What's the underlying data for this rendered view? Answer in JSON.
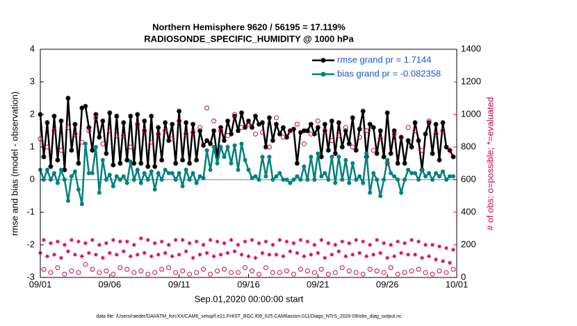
{
  "chart_data": {
    "type": "line",
    "title": "Northern Hemisphere 9620 / 56195 = 17.119%",
    "subtitle": "RADIOSONDE_SPECIFIC_HUMIDITY @ 1000 hPa",
    "xlabel": "Sep.01,2020 00:00:00 start",
    "ylabel": "rmse and bias (model - observation)",
    "y2label": "# of obs: o=possible; *=evaluated",
    "footnote": "data file: /Users/raeder/DAI/ATM_forcXX/CAM6_setup/f.e21.FHIST_BGC.f09_025.CAM6assim.011/Diags_NTrS_2020-09/obs_diag_output.nc",
    "xlim": [
      0,
      30
    ],
    "xticks": [
      {
        "value": 0,
        "label": "09/01"
      },
      {
        "value": 5,
        "label": "09/06"
      },
      {
        "value": 10,
        "label": "09/11"
      },
      {
        "value": 15,
        "label": "09/16"
      },
      {
        "value": 20,
        "label": "09/21"
      },
      {
        "value": 25,
        "label": "09/26"
      },
      {
        "value": 30,
        "label": "10/01"
      }
    ],
    "ylim": [
      -3,
      4
    ],
    "yticks": [
      -3,
      -2,
      -1,
      0,
      1,
      2,
      3,
      4
    ],
    "y2lim": [
      0,
      1400
    ],
    "y2ticks": [
      0,
      200,
      400,
      600,
      800,
      1000,
      1200,
      1400
    ],
    "y2color": "#cc0055",
    "legend": "upper right",
    "x": [
      0,
      0.25,
      0.5,
      0.75,
      1,
      1.25,
      1.5,
      1.75,
      2,
      2.25,
      2.5,
      2.75,
      3,
      3.25,
      3.5,
      3.75,
      4,
      4.25,
      4.5,
      4.75,
      5,
      5.25,
      5.5,
      5.75,
      6,
      6.25,
      6.5,
      6.75,
      7,
      7.25,
      7.5,
      7.75,
      8,
      8.25,
      8.5,
      8.75,
      9,
      9.25,
      9.5,
      9.75,
      10,
      10.25,
      10.5,
      10.75,
      11,
      11.25,
      11.5,
      11.75,
      12,
      12.25,
      12.5,
      12.75,
      13,
      13.25,
      13.5,
      13.75,
      14,
      14.25,
      14.5,
      14.75,
      15,
      15.25,
      15.5,
      15.75,
      16,
      16.25,
      16.5,
      16.75,
      17,
      17.25,
      17.5,
      17.75,
      18,
      18.25,
      18.5,
      18.75,
      19,
      19.25,
      19.5,
      19.75,
      20,
      20.25,
      20.5,
      20.75,
      21,
      21.25,
      21.5,
      21.75,
      22,
      22.25,
      22.5,
      22.75,
      23,
      23.25,
      23.5,
      23.75,
      24,
      24.25,
      24.5,
      24.75,
      25,
      25.25,
      25.5,
      25.75,
      26,
      26.25,
      26.5,
      26.75,
      27,
      27.25,
      27.5,
      27.75,
      28,
      28.25,
      28.5,
      28.75,
      29,
      29.25,
      29.5,
      29.75
    ],
    "series": [
      {
        "name": "rmse grand pr = 1.7144",
        "color": "#000000",
        "marker": "star",
        "line": true,
        "values": [
          2.0,
          0.7,
          1.75,
          0.4,
          1.95,
          0.6,
          1.8,
          0.3,
          2.5,
          0.9,
          1.7,
          0.5,
          2.2,
          2.25,
          1.6,
          0.9,
          2.0,
          1.3,
          1.8,
          0.8,
          2.05,
          0.45,
          1.95,
          0.5,
          1.75,
          0.6,
          1.95,
          0.5,
          2.0,
          0.5,
          1.8,
          0.4,
          1.95,
          0.4,
          1.6,
          0.6,
          1.75,
          1.2,
          1.7,
          0.5,
          2.1,
          0.6,
          1.75,
          0.5,
          1.7,
          0.6,
          1.5,
          1.05,
          1.2,
          1.1,
          1.5,
          0.7,
          1.6,
          1.2,
          1.8,
          1.4,
          1.95,
          1.5,
          2.05,
          1.6,
          1.8,
          1.6,
          1.95,
          1.7,
          1.75,
          1.0,
          1.9,
          1.2,
          1.7,
          1.4,
          1.6,
          1.3,
          1.5,
          1.55,
          0.5,
          1.45,
          1.5,
          1.5,
          1.7,
          1.4,
          1.6,
          0.7,
          1.7,
          0.9,
          1.8,
          0.8,
          1.75,
          1.0,
          1.5,
          1.1,
          1.9,
          0.9,
          1.55,
          2.1,
          0.7,
          1.7,
          1.6,
          0.8,
          1.5,
          0.7,
          2.05,
          0.8,
          1.5,
          0.5,
          1.3,
          0.5,
          1.2,
          1.0,
          1.75,
          1.2,
          0.3,
          1.4,
          1.75,
          0.8,
          1.7,
          0.6,
          1.75,
          1.0,
          0.9,
          0.7
        ]
      },
      {
        "name": "bias grand pr = -0.082358",
        "color": "#008080",
        "marker": "dot",
        "line": true,
        "values": [
          0.3,
          0.0,
          0.3,
          0.0,
          0.2,
          -0.1,
          0.3,
          0.0,
          -0.65,
          0.1,
          0.25,
          -0.3,
          -0.75,
          1.1,
          0.2,
          0.2,
          1.0,
          -0.4,
          0.6,
          0.0,
          0.15,
          -0.2,
          0.1,
          0.0,
          0.1,
          -0.1,
          0.55,
          0.0,
          0.3,
          -0.1,
          0.2,
          0.0,
          0.25,
          -0.3,
          0.2,
          0.0,
          0.3,
          0.2,
          0.2,
          0.0,
          0.2,
          -0.2,
          0.3,
          0.0,
          0.2,
          -0.1,
          0.1,
          0.05,
          0.9,
          0.3,
          1.0,
          0.5,
          1.0,
          0.7,
          1.0,
          0.5,
          1.05,
          0.3,
          1.1,
          0.6,
          0.3,
          0.05,
          0.1,
          0.0,
          0.7,
          0.1,
          0.7,
          0.0,
          0.1,
          0.2,
          0.0,
          0.0,
          -0.1,
          0.0,
          0.1,
          0.0,
          0.4,
          0.0,
          0.7,
          0.0,
          0.8,
          0.1,
          0.2,
          0.0,
          0.7,
          -0.1,
          0.7,
          0.0,
          0.6,
          -0.1,
          0.5,
          0.0,
          0.1,
          -0.1,
          0.8,
          -0.4,
          0.2,
          0.0,
          -0.5,
          0.0,
          0.6,
          0.2,
          0.1,
          0.0,
          -0.4,
          0.0,
          0.3,
          0.2,
          0.2,
          0.0,
          0.3,
          0.1,
          0.2,
          0.0,
          0.2,
          0.1,
          0.25,
          0.0,
          0.1,
          0.1
        ]
      },
      {
        "color": "#cc0055",
        "marker": "circle",
        "line": false,
        "axis": "y2",
        "values": [
          850,
          50,
          800,
          30,
          900,
          60,
          780,
          20,
          920,
          40,
          880,
          30,
          830,
          80,
          900,
          50,
          980,
          30,
          820,
          40,
          900,
          20,
          870,
          60,
          870,
          50,
          800,
          30,
          940,
          40,
          900,
          20,
          830,
          30,
          880,
          50,
          900,
          60,
          850,
          30,
          960,
          40,
          880,
          20,
          890,
          30,
          920,
          50,
          1040,
          20,
          960,
          40,
          900,
          50,
          870,
          30,
          1000,
          30,
          920,
          60,
          940,
          40,
          880,
          20,
          890,
          60,
          800,
          30,
          980,
          30,
          860,
          40,
          900,
          20,
          940,
          50,
          820,
          40,
          880,
          30,
          960,
          50,
          900,
          20,
          840,
          30,
          870,
          60,
          920,
          40,
          800,
          30,
          860,
          20,
          900,
          50,
          780,
          40,
          850,
          30,
          700,
          60,
          880,
          20,
          860,
          30,
          920,
          40,
          900,
          50,
          780,
          30,
          960,
          20,
          880,
          40,
          900,
          30,
          780,
          50
        ]
      },
      {
        "color": "#cc0055",
        "marker": "star",
        "line": false,
        "axis": "y2",
        "values": [
          150,
          230,
          130,
          210,
          140,
          220,
          120,
          200,
          160,
          230,
          140,
          220,
          130,
          210,
          150,
          230,
          140,
          200,
          120,
          210,
          150,
          230,
          140,
          220,
          160,
          220,
          130,
          200,
          140,
          240,
          150,
          230,
          130,
          210,
          140,
          220,
          150,
          200,
          130,
          230,
          140,
          230,
          160,
          210,
          120,
          220,
          140,
          200,
          150,
          230,
          130,
          220,
          140,
          210,
          150,
          230,
          160,
          200,
          140,
          220,
          130,
          230,
          120,
          210,
          150,
          220,
          140,
          200,
          140,
          230,
          130,
          220,
          160,
          210,
          150,
          230,
          130,
          220,
          140,
          200,
          150,
          230,
          120,
          210,
          140,
          200,
          160,
          220,
          130,
          210,
          140,
          230,
          150,
          220,
          130,
          200,
          140,
          230,
          150,
          210,
          120,
          200,
          130,
          220,
          150,
          210,
          140,
          230,
          140,
          220,
          120,
          200,
          130,
          200,
          110,
          190,
          100,
          180,
          90,
          170
        ]
      }
    ]
  }
}
